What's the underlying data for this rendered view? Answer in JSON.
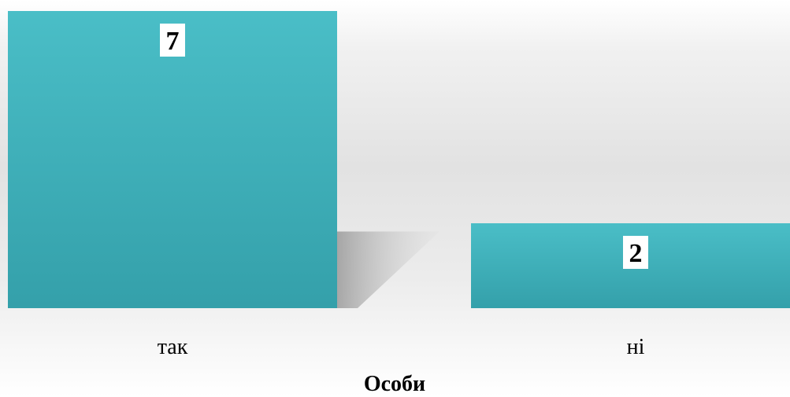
{
  "chart_data": {
    "type": "bar",
    "categories": [
      "так",
      "ні"
    ],
    "values": [
      7,
      2
    ],
    "data_labels": [
      "7",
      "2"
    ],
    "title": "",
    "xlabel": "Особи",
    "ylabel": "",
    "ylim": [
      0,
      7
    ],
    "grid": false,
    "legend": "none",
    "colors": {
      "bar_top": "#4ABEC7",
      "bar_bottom": "#34A0AA",
      "label_box": "#ffffff"
    }
  }
}
